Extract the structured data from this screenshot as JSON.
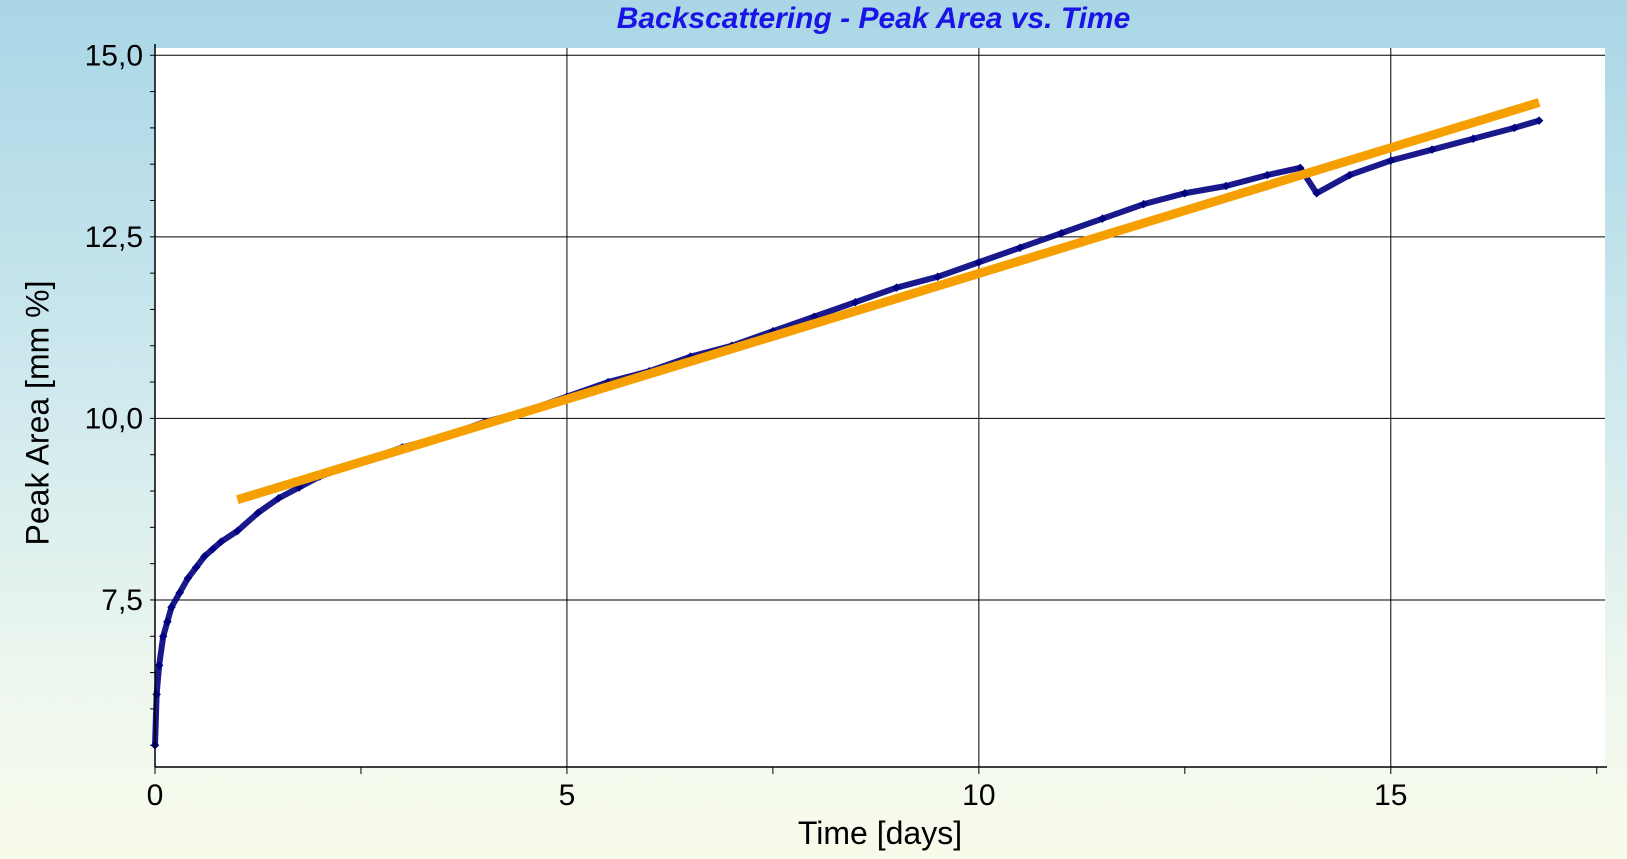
{
  "chart_data": {
    "type": "scatter",
    "title": "Backscattering - Peak Area vs. Time",
    "xlabel": "Time [days]",
    "ylabel": "Peak Area [mm %]",
    "xlim": [
      0,
      17.6
    ],
    "ylim": [
      5.2,
      15.1
    ],
    "x_ticks": [
      0,
      5,
      10,
      15
    ],
    "x_tick_labels": [
      "0",
      "5",
      "10",
      "15"
    ],
    "y_ticks": [
      7.5,
      10.0,
      12.5,
      15.0
    ],
    "y_tick_labels": [
      "7,5",
      "10,0",
      "12,5",
      "15,0"
    ],
    "grid": true,
    "series": [
      {
        "style": "scatter",
        "color": "#000080",
        "x": [
          0,
          0.02,
          0.05,
          0.1,
          0.15,
          0.2,
          0.3,
          0.4,
          0.5,
          0.6,
          0.7,
          0.8,
          1.0,
          1.25,
          1.5,
          1.75,
          2.0,
          2.5,
          3.0,
          3.5,
          4.0,
          4.5,
          5.0,
          5.5,
          6.0,
          6.5,
          7.0,
          7.5,
          8.0,
          8.5,
          9.0,
          9.5,
          10.0,
          10.5,
          11.0,
          11.5,
          12.0,
          12.5,
          13.0,
          13.5,
          13.9,
          14.1,
          14.5,
          15.0,
          15.5,
          16.0,
          16.5,
          16.8
        ],
        "y": [
          5.5,
          6.2,
          6.6,
          7.0,
          7.2,
          7.4,
          7.6,
          7.8,
          7.95,
          8.1,
          8.2,
          8.3,
          8.45,
          8.7,
          8.9,
          9.05,
          9.2,
          9.4,
          9.6,
          9.75,
          9.95,
          10.1,
          10.3,
          10.5,
          10.65,
          10.85,
          11.0,
          11.2,
          11.4,
          11.6,
          11.8,
          11.95,
          12.15,
          12.35,
          12.55,
          12.75,
          12.95,
          13.1,
          13.2,
          13.35,
          13.45,
          13.1,
          13.35,
          13.55,
          13.7,
          13.85,
          14.0,
          14.1
        ]
      },
      {
        "style": "fit-line",
        "color": "#f5a000",
        "x": [
          1.0,
          16.8
        ],
        "y": [
          8.88,
          14.35
        ]
      }
    ]
  }
}
